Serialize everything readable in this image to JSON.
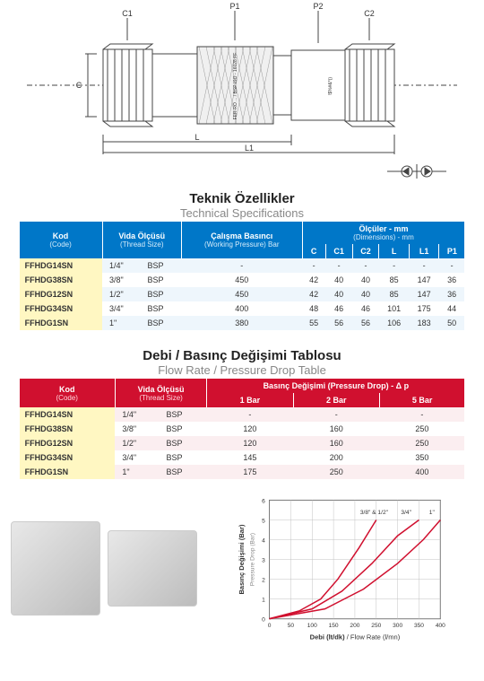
{
  "diagram": {
    "labels": {
      "p1": "P1",
      "p2": "P2",
      "c1": "C1",
      "c2": "C2",
      "c": "C",
      "l": "L",
      "l1": "L1"
    },
    "part_text": "FER-RO ... / BSP ISO - 16028 FF",
    "invalid_text": "!$%#&*()"
  },
  "symbol": {
    "w": 60,
    "h": 24
  },
  "tech_title": {
    "tr": "Teknik Özellikler",
    "en": "Technical Specifications"
  },
  "tech_headers": {
    "code": "Kod",
    "code_en": "(Code)",
    "thread": "Vida Ölçüsü",
    "thread_en": "(Thread Size)",
    "wp": "Çalışma Basıncı",
    "wp_en": "(Working Pressure)\nBar",
    "dim": "Ölçüler - mm",
    "dim_en": "(Dimensions) - mm",
    "c": "C",
    "c1": "C1",
    "c2": "C2",
    "l": "L",
    "l1": "L1",
    "p1": "P1"
  },
  "tech_rows": [
    {
      "code": "FFHDG14SN",
      "size": "1/4\"",
      "std": "BSP",
      "wp": "-",
      "c": "-",
      "c1": "-",
      "c2": "-",
      "l": "-",
      "l1": "-",
      "p1": "-"
    },
    {
      "code": "FFHDG38SN",
      "size": "3/8\"",
      "std": "BSP",
      "wp": "450",
      "c": "42",
      "c1": "40",
      "c2": "40",
      "l": "85",
      "l1": "147",
      "p1": "36"
    },
    {
      "code": "FFHDG12SN",
      "size": "1/2\"",
      "std": "BSP",
      "wp": "450",
      "c": "42",
      "c1": "40",
      "c2": "40",
      "l": "85",
      "l1": "147",
      "p1": "36"
    },
    {
      "code": "FFHDG34SN",
      "size": "3/4\"",
      "std": "BSP",
      "wp": "400",
      "c": "48",
      "c1": "46",
      "c2": "46",
      "l": "101",
      "l1": "175",
      "p1": "44"
    },
    {
      "code": "FFHDG1SN",
      "size": "1\"",
      "std": "BSP",
      "wp": "380",
      "c": "55",
      "c1": "56",
      "c2": "56",
      "l": "106",
      "l1": "183",
      "p1": "50"
    }
  ],
  "flow_title": {
    "tr": "Debi / Basınç Değişimi Tablosu",
    "en": "Flow Rate / Pressure Drop Table"
  },
  "flow_headers": {
    "code": "Kod",
    "code_en": "(Code)",
    "thread": "Vida Ölçüsü",
    "thread_en": "(Thread Size)",
    "pd": "Basınç Değişimi (Pressure Drop) - Δ p",
    "b1": "1 Bar",
    "b2": "2 Bar",
    "b5": "5 Bar"
  },
  "flow_rows": [
    {
      "code": "FFHDG14SN",
      "size": "1/4\"",
      "std": "BSP",
      "b1": "-",
      "b2": "-",
      "b5": "-"
    },
    {
      "code": "FFHDG38SN",
      "size": "3/8\"",
      "std": "BSP",
      "b1": "120",
      "b2": "160",
      "b5": "250"
    },
    {
      "code": "FFHDG12SN",
      "size": "1/2\"",
      "std": "BSP",
      "b1": "120",
      "b2": "160",
      "b5": "250"
    },
    {
      "code": "FFHDG34SN",
      "size": "3/4\"",
      "std": "BSP",
      "b1": "145",
      "b2": "200",
      "b5": "350"
    },
    {
      "code": "FFHDG1SN",
      "size": "1\"",
      "std": "BSP",
      "b1": "175",
      "b2": "250",
      "b5": "400"
    }
  ],
  "chart": {
    "xlabel_tr": "Debi (lt/dk)",
    "xlabel_en": "Flow Rate (l/mn)",
    "ylabel_tr": "Basınç Değişimi (Bar)",
    "ylabel_en": "Pressure Drop (Bar)",
    "xlim": [
      0,
      400
    ],
    "ylim": [
      0,
      6
    ],
    "xticks": [
      0,
      50,
      100,
      150,
      200,
      250,
      300,
      350,
      400
    ],
    "yticks": [
      0,
      1,
      2,
      3,
      4,
      5,
      6
    ],
    "grid_color": "#bfbfbf",
    "line_color": "#d0102f",
    "series": [
      {
        "label": "3/8\" & 1/2\"",
        "pts": [
          [
            0,
            0
          ],
          [
            70,
            0.4
          ],
          [
            120,
            1.0
          ],
          [
            160,
            2.0
          ],
          [
            210,
            3.6
          ],
          [
            250,
            5.0
          ]
        ]
      },
      {
        "label": "3/4\"",
        "pts": [
          [
            0,
            0
          ],
          [
            100,
            0.5
          ],
          [
            170,
            1.4
          ],
          [
            240,
            2.8
          ],
          [
            300,
            4.2
          ],
          [
            350,
            5.0
          ]
        ]
      },
      {
        "label": "1\"",
        "pts": [
          [
            0,
            0
          ],
          [
            130,
            0.5
          ],
          [
            220,
            1.5
          ],
          [
            300,
            2.8
          ],
          [
            360,
            4.0
          ],
          [
            400,
            5.0
          ]
        ]
      }
    ]
  }
}
